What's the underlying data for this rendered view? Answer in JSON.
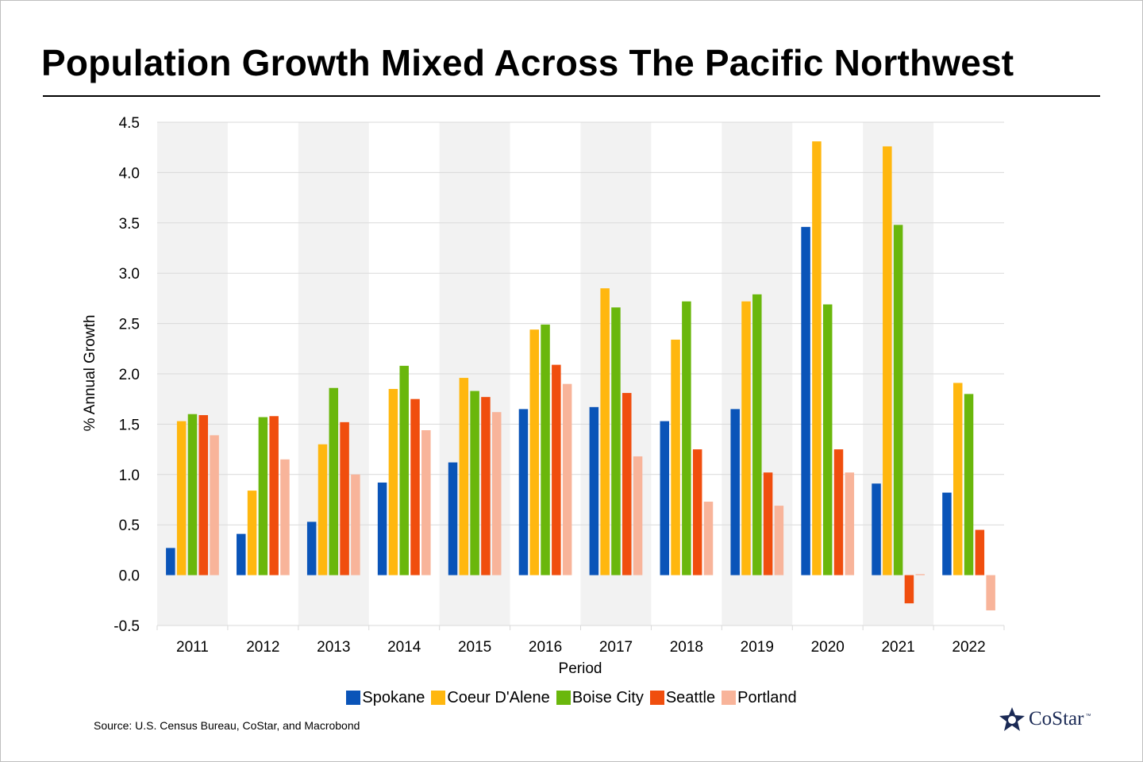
{
  "title": "Population Growth Mixed Across The Pacific Northwest",
  "source": "Source: U.S. Census Bureau, CoStar, and Macrobond",
  "logo": {
    "text": "CoStar",
    "tm": "™"
  },
  "chart_data": {
    "type": "bar",
    "xlabel": "Period",
    "ylabel": "% Annual Growth",
    "ylim": [
      -0.5,
      4.5
    ],
    "yticks": [
      "-0.5",
      "0.0",
      "0.5",
      "1.0",
      "1.5",
      "2.0",
      "2.5",
      "3.0",
      "3.5",
      "4.0",
      "4.5"
    ],
    "grid": true,
    "legend_position": "bottom",
    "categories": [
      "2011",
      "2012",
      "2013",
      "2014",
      "2015",
      "2016",
      "2017",
      "2018",
      "2019",
      "2020",
      "2021",
      "2022"
    ],
    "series": [
      {
        "name": "Spokane",
        "color": "#0a54b8",
        "values": [
          0.27,
          0.41,
          0.53,
          0.92,
          1.12,
          1.65,
          1.67,
          1.53,
          1.65,
          3.46,
          0.91,
          0.82
        ]
      },
      {
        "name": "Coeur D'Alene",
        "color": "#ffb70f",
        "values": [
          1.53,
          0.84,
          1.3,
          1.85,
          1.96,
          2.44,
          2.85,
          2.34,
          2.72,
          4.31,
          4.26,
          1.91
        ]
      },
      {
        "name": "Boise City",
        "color": "#6ab70c",
        "values": [
          1.6,
          1.57,
          1.86,
          2.08,
          1.83,
          2.49,
          2.66,
          2.72,
          2.79,
          2.69,
          3.48,
          1.8
        ]
      },
      {
        "name": "Seattle",
        "color": "#f04e0e",
        "values": [
          1.59,
          1.58,
          1.52,
          1.75,
          1.77,
          2.09,
          1.81,
          1.25,
          1.02,
          1.25,
          -0.28,
          0.45
        ]
      },
      {
        "name": "Portland",
        "color": "#f8b49a",
        "values": [
          1.39,
          1.15,
          1.0,
          1.44,
          1.62,
          1.9,
          1.18,
          0.73,
          0.69,
          1.02,
          0.01,
          -0.35
        ]
      }
    ]
  }
}
